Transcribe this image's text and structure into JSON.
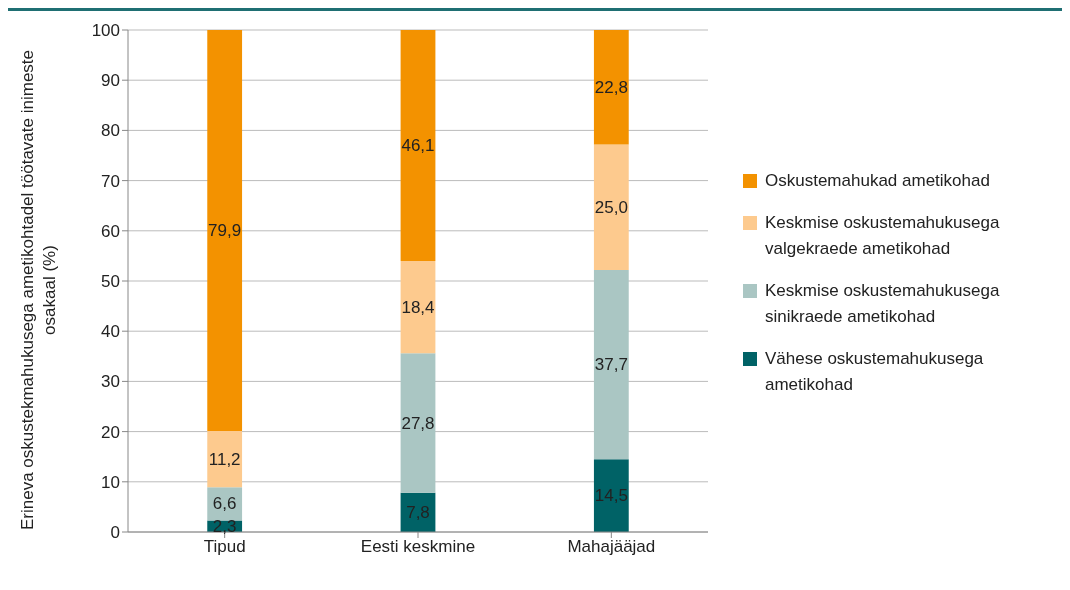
{
  "chart_data": {
    "type": "bar",
    "stacked": true,
    "ylabel": "Erineva oskustekmahukusega ametikohtadel töötavate inimeste osakaal (%)",
    "categories": [
      "Tipud",
      "Eesti keskmine",
      "Mahajääjad"
    ],
    "series": [
      {
        "name": "Vähese oskustemahukusega ametikohad",
        "color": "#006266",
        "values": [
          2.3,
          7.8,
          14.5
        ],
        "value_labels": [
          "2,3",
          "7,8",
          "14,5"
        ]
      },
      {
        "name": "Keskmise oskustemahukusega sinikraede ametikohad",
        "color": "#aac6c3",
        "values": [
          6.6,
          27.8,
          37.7
        ],
        "value_labels": [
          "6,6",
          "27,8",
          "37,7"
        ]
      },
      {
        "name": "Keskmise oskustemahukusega valgekraede ametikohad",
        "color": "#fdca8e",
        "values": [
          11.2,
          18.4,
          25.0
        ],
        "value_labels": [
          "11,2",
          "18,4",
          "25,0"
        ]
      },
      {
        "name": "Oskustemahukad ametikohad",
        "color": "#f39200",
        "values": [
          79.9,
          46.1,
          22.8
        ],
        "value_labels": [
          "79,9",
          "46,1",
          "22,8"
        ]
      }
    ],
    "ylim": [
      0,
      100
    ],
    "yticks": [
      0,
      10,
      20,
      30,
      40,
      50,
      60,
      70,
      80,
      90,
      100
    ],
    "grid": "y",
    "legend": "right"
  }
}
